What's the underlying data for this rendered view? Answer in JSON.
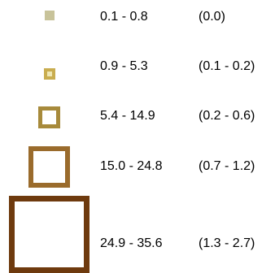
{
  "legend": {
    "entries": [
      {
        "range": "0.1 - 0.8",
        "pct": "(0.0)",
        "color": "#c8c39a",
        "fill": "#c8c39a"
      },
      {
        "range": "0.9 - 5.3",
        "pct": "(0.1 - 0.2)",
        "color": "#c9ad4f",
        "fill": "#efe7b3"
      },
      {
        "range": "5.4 - 14.9",
        "pct": "(0.2 - 0.6)",
        "color": "#a78a3b",
        "fill": "#ffffff"
      },
      {
        "range": "15.0 - 24.8",
        "pct": "(0.7 - 1.2)",
        "color": "#9a6b2c",
        "fill": "#ffffff"
      },
      {
        "range": "24.9 - 35.6",
        "pct": "(1.3 - 2.7)",
        "color": "#6e3a0e",
        "fill": "#ffffff"
      }
    ]
  }
}
